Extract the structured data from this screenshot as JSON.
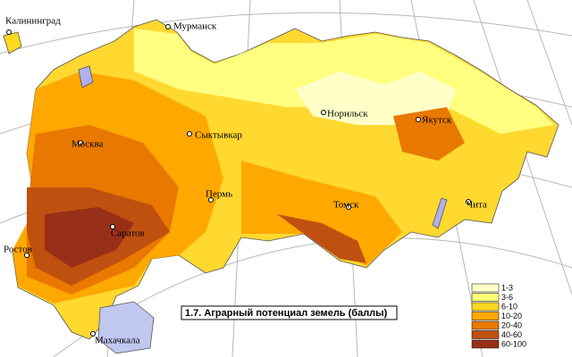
{
  "title": "1.7. Аграрный потенциал земель (баллы)",
  "cities": [
    {
      "name": "Калининград"
    },
    {
      "name": "Мурманск"
    },
    {
      "name": "Москва"
    },
    {
      "name": "Сыктывкар"
    },
    {
      "name": "Норильск"
    },
    {
      "name": "Якутск"
    },
    {
      "name": "Пермь"
    },
    {
      "name": "Томск"
    },
    {
      "name": "Чита"
    },
    {
      "name": "Саратов"
    },
    {
      "name": "Ростов"
    },
    {
      "name": "Махачкала"
    }
  ],
  "legend": [
    {
      "label": "1-3",
      "color": "#ffffc8"
    },
    {
      "label": "3-6",
      "color": "#ffff78"
    },
    {
      "label": "6-10",
      "color": "#ffd820"
    },
    {
      "label": "10-20",
      "color": "#ffa800"
    },
    {
      "label": "20-40",
      "color": "#e87800"
    },
    {
      "label": "40-60",
      "color": "#c05010"
    },
    {
      "label": "60-100",
      "color": "#983018"
    }
  ]
}
